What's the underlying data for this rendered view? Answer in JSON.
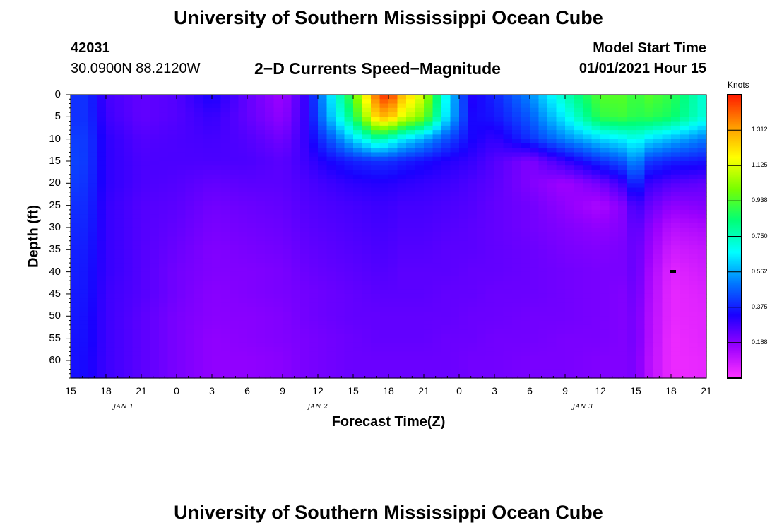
{
  "header": {
    "title_top": "University of Southern Mississippi Ocean Cube",
    "station_id": "42031",
    "location": "30.0900N 88.2120W",
    "subtitle": "2−D Currents Speed−Magnitude",
    "model_start_label": "Model Start Time",
    "model_start_value": "01/01/2021 Hour 15",
    "title_bottom": "University of Southern Mississippi Ocean Cube"
  },
  "colorbar": {
    "unit_label": "Knots",
    "ticks": [
      "0.188",
      "0.375",
      "0.562",
      "0.750",
      "0.938",
      "1.125",
      "1.312"
    ],
    "tick_values": [
      0.188,
      0.375,
      0.562,
      0.75,
      0.938,
      1.125,
      1.312
    ],
    "range": [
      0,
      1.5
    ],
    "colors": [
      "#ff33ff",
      "#9b00ff",
      "#1a00ff",
      "#0077ff",
      "#00ffff",
      "#00ff77",
      "#77ff00",
      "#ffff00",
      "#ff9900",
      "#ff1a00"
    ]
  },
  "chart_data": {
    "type": "heatmap",
    "title": "2−D Currents Speed−Magnitude",
    "xlabel": "Forecast Time(Z)",
    "ylabel": "Depth (ft)",
    "x_tick_labels": [
      "15",
      "18",
      "21",
      "0",
      "3",
      "6",
      "9",
      "12",
      "15",
      "18",
      "21",
      "0",
      "3",
      "6",
      "9",
      "12",
      "15",
      "18",
      "21"
    ],
    "x_range_hours": [
      0,
      54
    ],
    "day_labels": [
      {
        "label": "JAN 1",
        "hour": 4.5
      },
      {
        "label": "JAN 2",
        "hour": 21
      },
      {
        "label": "JAN 3",
        "hour": 43.5
      }
    ],
    "y_tick_labels": [
      "0",
      "5",
      "10",
      "15",
      "20",
      "25",
      "30",
      "35",
      "40",
      "45",
      "50",
      "55",
      "60"
    ],
    "ylim": [
      0,
      64
    ],
    "depths_ft": [
      0,
      5,
      10,
      15,
      20,
      25,
      30,
      35,
      40,
      45,
      50,
      55,
      60,
      64
    ],
    "hours": [
      0,
      1.5,
      3,
      6,
      9,
      12,
      15,
      18,
      20,
      22,
      24,
      26,
      27,
      28,
      30,
      32,
      34,
      36,
      39,
      42,
      45,
      47,
      48,
      49,
      51,
      54
    ],
    "speed_knots": [
      [
        0.4,
        0.4,
        0.28,
        0.24,
        0.26,
        0.34,
        0.24,
        0.16,
        0.3,
        0.62,
        0.95,
        1.4,
        1.5,
        1.3,
        1.1,
        0.65,
        0.32,
        0.38,
        0.52,
        0.75,
        0.95,
        0.95,
        0.9,
        0.95,
        0.9,
        0.7
      ],
      [
        0.4,
        0.4,
        0.29,
        0.24,
        0.26,
        0.3,
        0.24,
        0.18,
        0.3,
        0.58,
        0.85,
        1.25,
        1.3,
        1.15,
        1.0,
        0.62,
        0.34,
        0.36,
        0.46,
        0.66,
        0.9,
        0.92,
        0.88,
        0.9,
        0.86,
        0.7
      ],
      [
        0.42,
        0.41,
        0.31,
        0.26,
        0.27,
        0.28,
        0.26,
        0.22,
        0.3,
        0.45,
        0.62,
        0.78,
        0.74,
        0.66,
        0.56,
        0.44,
        0.34,
        0.3,
        0.4,
        0.52,
        0.62,
        0.66,
        0.7,
        0.64,
        0.58,
        0.5
      ],
      [
        0.43,
        0.41,
        0.31,
        0.27,
        0.27,
        0.27,
        0.27,
        0.25,
        0.29,
        0.34,
        0.38,
        0.4,
        0.4,
        0.38,
        0.35,
        0.32,
        0.3,
        0.26,
        0.2,
        0.3,
        0.4,
        0.46,
        0.55,
        0.42,
        0.38,
        0.36
      ],
      [
        0.42,
        0.4,
        0.31,
        0.27,
        0.26,
        0.24,
        0.25,
        0.25,
        0.27,
        0.29,
        0.31,
        0.32,
        0.32,
        0.31,
        0.3,
        0.29,
        0.27,
        0.25,
        0.2,
        0.16,
        0.22,
        0.3,
        0.42,
        0.3,
        0.26,
        0.24
      ],
      [
        0.4,
        0.39,
        0.3,
        0.26,
        0.25,
        0.22,
        0.23,
        0.24,
        0.26,
        0.27,
        0.28,
        0.29,
        0.29,
        0.28,
        0.28,
        0.27,
        0.26,
        0.24,
        0.22,
        0.18,
        0.14,
        0.2,
        0.3,
        0.24,
        0.18,
        0.2
      ],
      [
        0.39,
        0.38,
        0.3,
        0.26,
        0.24,
        0.21,
        0.22,
        0.23,
        0.25,
        0.26,
        0.27,
        0.28,
        0.28,
        0.27,
        0.27,
        0.26,
        0.25,
        0.24,
        0.22,
        0.2,
        0.18,
        0.2,
        0.26,
        0.2,
        0.12,
        0.14
      ],
      [
        0.38,
        0.37,
        0.3,
        0.26,
        0.23,
        0.2,
        0.21,
        0.22,
        0.24,
        0.25,
        0.26,
        0.27,
        0.27,
        0.26,
        0.26,
        0.25,
        0.25,
        0.24,
        0.23,
        0.21,
        0.2,
        0.21,
        0.24,
        0.18,
        0.08,
        0.1
      ],
      [
        0.38,
        0.36,
        0.3,
        0.26,
        0.22,
        0.2,
        0.2,
        0.21,
        0.23,
        0.24,
        0.25,
        0.26,
        0.26,
        0.25,
        0.25,
        0.25,
        0.24,
        0.24,
        0.23,
        0.22,
        0.21,
        0.21,
        0.24,
        0.16,
        0.05,
        0.08
      ],
      [
        0.37,
        0.36,
        0.29,
        0.26,
        0.22,
        0.19,
        0.2,
        0.21,
        0.22,
        0.23,
        0.24,
        0.25,
        0.25,
        0.25,
        0.25,
        0.24,
        0.24,
        0.23,
        0.23,
        0.22,
        0.21,
        0.2,
        0.23,
        0.15,
        0.04,
        0.06
      ],
      [
        0.37,
        0.35,
        0.29,
        0.25,
        0.21,
        0.19,
        0.19,
        0.2,
        0.22,
        0.23,
        0.24,
        0.24,
        0.24,
        0.24,
        0.24,
        0.24,
        0.23,
        0.23,
        0.22,
        0.22,
        0.21,
        0.2,
        0.22,
        0.14,
        0.04,
        0.05
      ],
      [
        0.36,
        0.35,
        0.29,
        0.25,
        0.21,
        0.18,
        0.19,
        0.2,
        0.21,
        0.22,
        0.23,
        0.24,
        0.24,
        0.24,
        0.24,
        0.23,
        0.23,
        0.22,
        0.22,
        0.21,
        0.21,
        0.2,
        0.22,
        0.14,
        0.03,
        0.05
      ],
      [
        0.36,
        0.34,
        0.29,
        0.25,
        0.21,
        0.18,
        0.18,
        0.19,
        0.21,
        0.22,
        0.23,
        0.23,
        0.23,
        0.23,
        0.23,
        0.23,
        0.22,
        0.22,
        0.21,
        0.21,
        0.2,
        0.2,
        0.21,
        0.13,
        0.03,
        0.04
      ],
      [
        0.36,
        0.34,
        0.29,
        0.25,
        0.21,
        0.18,
        0.18,
        0.19,
        0.21,
        0.22,
        0.23,
        0.23,
        0.23,
        0.23,
        0.23,
        0.23,
        0.22,
        0.22,
        0.21,
        0.21,
        0.2,
        0.2,
        0.21,
        0.13,
        0.03,
        0.04
      ]
    ],
    "colorbar_label": "Knots",
    "colorbar_range": [
      0,
      1.5
    ]
  }
}
